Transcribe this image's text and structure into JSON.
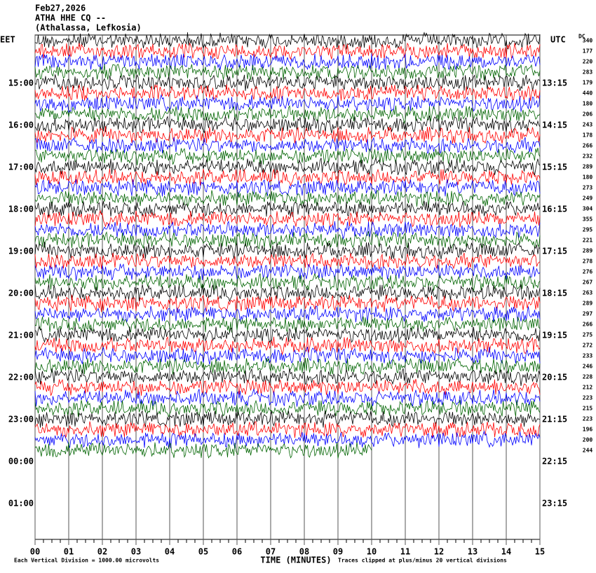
{
  "chart_data": {
    "type": "helicorder",
    "title_lines": [
      "Feb27,2026",
      "ATHA HHE CQ --",
      "(Athalassa, Lefkosia)"
    ],
    "left_label": "EET",
    "right_label": "UTC",
    "left_times": [
      "15:00",
      "16:00",
      "17:00",
      "18:00",
      "19:00",
      "20:00",
      "21:00",
      "22:00",
      "23:00",
      "00:00",
      "01:00"
    ],
    "right_times": [
      "13:15",
      "14:15",
      "15:15",
      "16:15",
      "17:15",
      "18:15",
      "19:15",
      "20:15",
      "21:15",
      "22:15",
      "23:15"
    ],
    "dc_label": "DC",
    "dc_values": [
      340,
      177,
      220,
      283,
      179,
      440,
      180,
      206,
      243,
      178,
      266,
      232,
      289,
      180,
      273,
      249,
      304,
      355,
      295,
      221,
      289,
      278,
      276,
      267,
      263,
      289,
      297,
      266,
      275,
      272,
      233,
      246,
      228,
      212,
      223,
      215,
      223,
      196,
      200,
      244
    ],
    "trace_colors": [
      "#000000",
      "#ff0000",
      "#0000ff",
      "#006400"
    ],
    "last_trace_end": 10,
    "xlim": [
      0,
      15
    ],
    "xticks": [
      {
        "value": 0,
        "label": "00"
      },
      {
        "value": 1,
        "label": "01"
      },
      {
        "value": 2,
        "label": "02"
      },
      {
        "value": 3,
        "label": "03"
      },
      {
        "value": 4,
        "label": "04"
      },
      {
        "value": 5,
        "label": "05"
      },
      {
        "value": 6,
        "label": "06"
      },
      {
        "value": 7,
        "label": "07"
      },
      {
        "value": 8,
        "label": "08"
      },
      {
        "value": 9,
        "label": "09"
      },
      10,
      11,
      12,
      13,
      14,
      15
    ],
    "xlabel": "TIME (MINUTES)",
    "scale_note": "Each Vertical Division = 1000.00 microvolts",
    "clip_note": "Traces clipped at plus/minus 20 vertical divisions"
  }
}
